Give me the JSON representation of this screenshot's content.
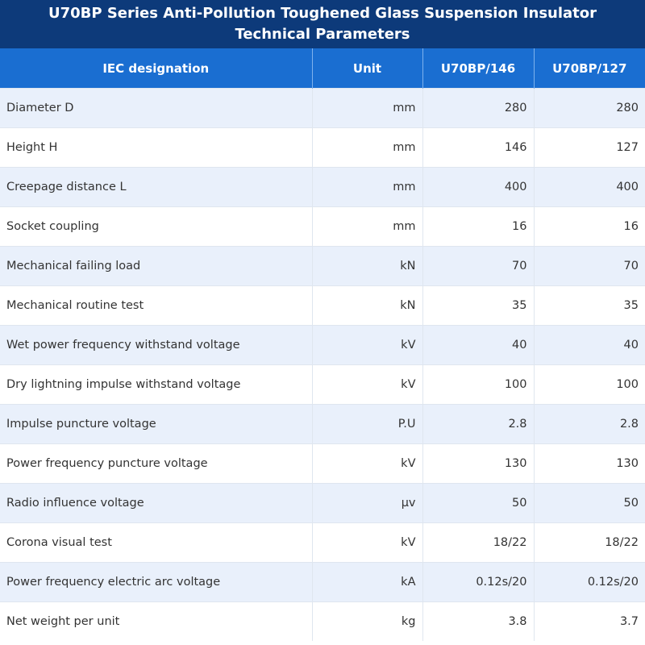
{
  "title": "U70BP Series Anti-Pollution Toughened Glass Suspension Insulator Technical Parameters",
  "header": [
    "IEC designation",
    "Unit",
    "U70BP/146",
    "U70BP/127"
  ],
  "rows": [
    [
      "Diameter D",
      "mm",
      "280",
      "280"
    ],
    [
      "Height H",
      "mm",
      "146",
      "127"
    ],
    [
      "Creepage distance L",
      "mm",
      "400",
      "400"
    ],
    [
      "Socket coupling",
      "mm",
      "16",
      "16"
    ],
    [
      "Mechanical failing load",
      "kN",
      "70",
      "70"
    ],
    [
      "Mechanical routine test",
      "kN",
      "35",
      "35"
    ],
    [
      "Wet power frequency withstand voltage",
      "kV",
      "40",
      "40"
    ],
    [
      "Dry lightning impulse withstand voltage",
      "kV",
      "100",
      "100"
    ],
    [
      "Impulse puncture voltage",
      "P.U",
      "2.8",
      "2.8"
    ],
    [
      "Power frequency puncture voltage",
      "kV",
      "130",
      "130"
    ],
    [
      "Radio influence voltage",
      "μv",
      "50",
      "50"
    ],
    [
      "Corona visual test",
      "kV",
      "18/22",
      "18/22"
    ],
    [
      "Power frequency electric arc voltage",
      "kA",
      "0.12s/20",
      "0.12s/20"
    ],
    [
      "Net weight per unit",
      "kg",
      "3.8",
      "3.7"
    ]
  ]
}
